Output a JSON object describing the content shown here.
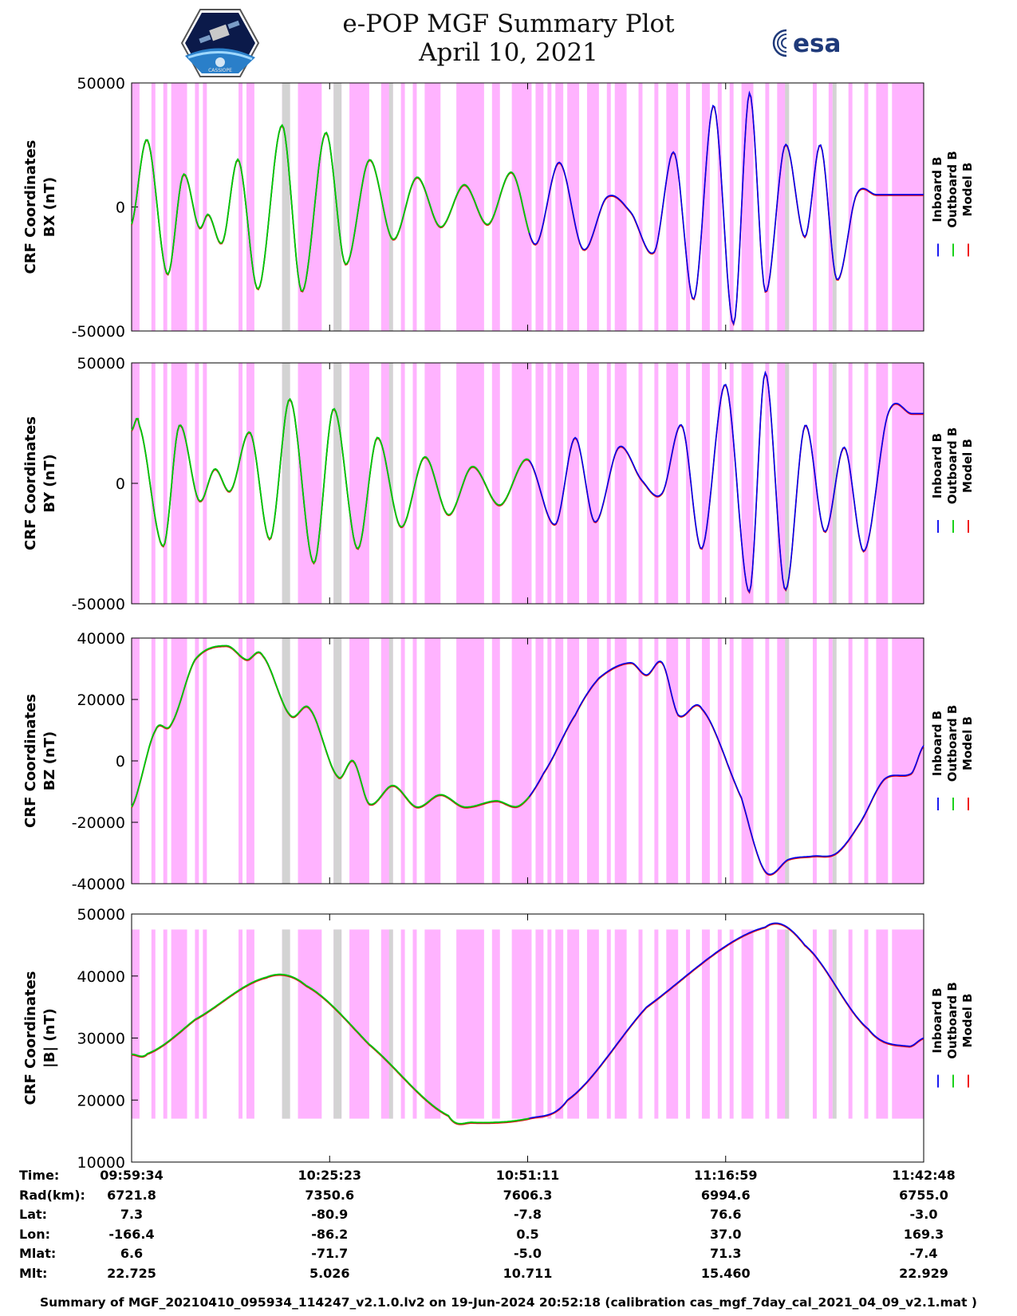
{
  "header": {
    "title_line1": "e-POP MGF Summary Plot",
    "title_line2": "April 10, 2021",
    "logo_left_text": "CASSIOPE",
    "logo_right_text": "esa"
  },
  "legend": {
    "inboard": "Inboard B",
    "outboard": "Outboard B",
    "model": "Model B"
  },
  "colors": {
    "inboard": "#0000ee",
    "outboard": "#00cc00",
    "model": "#ee0000",
    "shade": "#ffb3ff",
    "shade_gray": "#d3d3d3"
  },
  "chart_data": [
    {
      "type": "line",
      "id": "bx",
      "ylabel_line1": "CRF Coordinates",
      "ylabel_line2": "BX (nT)",
      "ylim": [
        -50000,
        50000
      ],
      "yticks": [
        "50000",
        "0",
        "-50000"
      ],
      "ytick_values": [
        50000,
        0,
        -50000
      ],
      "x": [
        0,
        0.02,
        0.045,
        0.065,
        0.085,
        0.097,
        0.115,
        0.135,
        0.16,
        0.19,
        0.215,
        0.245,
        0.27,
        0.3,
        0.33,
        0.36,
        0.39,
        0.42,
        0.45,
        0.48,
        0.51,
        0.54,
        0.57,
        0.6,
        0.63,
        0.66,
        0.685,
        0.71,
        0.735,
        0.76,
        0.78,
        0.8,
        0.825,
        0.85,
        0.87,
        0.89,
        0.915,
        0.94,
        0.96,
        0.985,
        1.0
      ],
      "values": [
        -7000,
        27000,
        -27000,
        13000,
        -8000,
        -3000,
        -14000,
        19000,
        -33000,
        33000,
        -34000,
        30000,
        -23000,
        19000,
        -13000,
        12000,
        -8000,
        9000,
        -7000,
        14000,
        -15000,
        18000,
        -17000,
        4000,
        -2000,
        -18000,
        22000,
        -37000,
        41000,
        -47000,
        46000,
        -34000,
        25000,
        -12000,
        25000,
        -29000,
        5000,
        5000,
        5000,
        5000,
        5000
      ],
      "handoff_x": 0.5
    },
    {
      "type": "line",
      "id": "by",
      "ylabel_line1": "CRF Coordinates",
      "ylabel_line2": "BY (nT)",
      "ylim": [
        -50000,
        50000
      ],
      "yticks": [
        "50000",
        "0",
        "-50000"
      ],
      "ytick_values": [
        50000,
        0,
        -50000
      ],
      "x": [
        0,
        0.01,
        0.04,
        0.06,
        0.085,
        0.105,
        0.125,
        0.15,
        0.175,
        0.2,
        0.23,
        0.255,
        0.285,
        0.31,
        0.34,
        0.37,
        0.4,
        0.43,
        0.465,
        0.5,
        0.535,
        0.56,
        0.585,
        0.615,
        0.645,
        0.67,
        0.695,
        0.72,
        0.75,
        0.78,
        0.8,
        0.825,
        0.85,
        0.875,
        0.9,
        0.925,
        0.955,
        0.985,
        1.0
      ],
      "values": [
        22000,
        24000,
        -26000,
        24000,
        -7000,
        6000,
        -3000,
        21000,
        -23000,
        35000,
        -33000,
        31000,
        -27000,
        19000,
        -18000,
        11000,
        -13000,
        7000,
        -9000,
        10000,
        -17000,
        19000,
        -16000,
        15000,
        1000,
        -4000,
        24000,
        -27000,
        41000,
        -45000,
        46000,
        -44000,
        24000,
        -20000,
        15000,
        -28000,
        29000,
        29000,
        29000
      ],
      "handoff_x": 0.5
    },
    {
      "type": "line",
      "id": "bz",
      "ylabel_line1": "CRF Coordinates",
      "ylabel_line2": "BZ (nT)",
      "ylim": [
        -40000,
        40000
      ],
      "yticks": [
        "40000",
        "20000",
        "0",
        "-20000",
        "-40000"
      ],
      "ytick_values": [
        40000,
        20000,
        0,
        -20000,
        -40000
      ],
      "x": [
        0,
        0.03,
        0.05,
        0.08,
        0.12,
        0.145,
        0.165,
        0.2,
        0.225,
        0.26,
        0.28,
        0.3,
        0.33,
        0.36,
        0.39,
        0.42,
        0.46,
        0.49,
        0.52,
        0.56,
        0.59,
        0.63,
        0.65,
        0.67,
        0.69,
        0.72,
        0.77,
        0.8,
        0.83,
        0.86,
        0.89,
        0.92,
        0.95,
        0.985,
        1.0
      ],
      "values": [
        -15000,
        10000,
        12000,
        33000,
        37500,
        33000,
        34500,
        15000,
        17000,
        -5000,
        0,
        -14000,
        -8000,
        -15000,
        -11000,
        -15000,
        -13000,
        -14500,
        -4000,
        15000,
        27000,
        32000,
        28000,
        32000,
        15000,
        17000,
        -12000,
        -36000,
        -32000,
        -31000,
        -30000,
        -20000,
        -6000,
        -4000,
        5000
      ],
      "handoff_x": 0.5
    },
    {
      "type": "line",
      "id": "bmag",
      "ylabel_line1": "CRF Coordinates",
      "ylabel_line2": "|B| (nT)",
      "ylim": [
        10000,
        50000
      ],
      "yticks": [
        "50000",
        "40000",
        "30000",
        "20000",
        "10000"
      ],
      "ytick_values": [
        50000,
        40000,
        30000,
        20000,
        10000
      ],
      "x": [
        0,
        0.02,
        0.08,
        0.17,
        0.22,
        0.3,
        0.4,
        0.43,
        0.5,
        0.55,
        0.65,
        0.8,
        0.85,
        0.93,
        0.98,
        1.0
      ],
      "values": [
        27400,
        27500,
        33000,
        39800,
        38500,
        29000,
        17500,
        16400,
        17000,
        20000,
        35000,
        47900,
        45000,
        31500,
        28700,
        30000
      ],
      "handoff_x": 0.5
    }
  ],
  "shading": {
    "pink_bands": [
      [
        0.0,
        0.01
      ],
      [
        0.025,
        0.03
      ],
      [
        0.04,
        0.045
      ],
      [
        0.05,
        0.07
      ],
      [
        0.08,
        0.085
      ],
      [
        0.09,
        0.095
      ],
      [
        0.135,
        0.14
      ],
      [
        0.145,
        0.155
      ],
      [
        0.19,
        0.2
      ],
      [
        0.21,
        0.24
      ],
      [
        0.255,
        0.265
      ],
      [
        0.275,
        0.3
      ],
      [
        0.315,
        0.33
      ],
      [
        0.34,
        0.345
      ],
      [
        0.355,
        0.36
      ],
      [
        0.37,
        0.39
      ],
      [
        0.41,
        0.445
      ],
      [
        0.455,
        0.465
      ],
      [
        0.48,
        0.505
      ],
      [
        0.51,
        0.52
      ],
      [
        0.525,
        0.53
      ],
      [
        0.535,
        0.545
      ],
      [
        0.55,
        0.565
      ],
      [
        0.575,
        0.59
      ],
      [
        0.6,
        0.605
      ],
      [
        0.61,
        0.625
      ],
      [
        0.64,
        0.645
      ],
      [
        0.66,
        0.665
      ],
      [
        0.675,
        0.69
      ],
      [
        0.7,
        0.705
      ],
      [
        0.72,
        0.73
      ],
      [
        0.74,
        0.745
      ],
      [
        0.755,
        0.76
      ],
      [
        0.77,
        0.785
      ],
      [
        0.8,
        0.805
      ],
      [
        0.815,
        0.83
      ],
      [
        0.86,
        0.865
      ],
      [
        0.88,
        0.885
      ],
      [
        0.905,
        0.91
      ],
      [
        0.925,
        0.93
      ],
      [
        0.94,
        0.955
      ],
      [
        0.96,
        1.0
      ]
    ],
    "gray_bands": [
      [
        0.19,
        0.2
      ],
      [
        0.255,
        0.265
      ],
      [
        0.325,
        0.33
      ],
      [
        0.825,
        0.83
      ],
      [
        0.885,
        0.89
      ]
    ]
  },
  "xticks": [
    0,
    0.25,
    0.5,
    0.75,
    1.0
  ],
  "info_table": {
    "row_labels": [
      "Time:",
      "Rad(km):",
      "Lat:",
      "Lon:",
      "Mlat:",
      "Mlt:"
    ],
    "columns": [
      [
        "09:59:34",
        "6721.8",
        "7.3",
        "-166.4",
        "6.6",
        "22.725"
      ],
      [
        "10:25:23",
        "7350.6",
        "-80.9",
        "-86.2",
        "-71.7",
        "5.026"
      ],
      [
        "10:51:11",
        "7606.3",
        "-7.8",
        "0.5",
        "-5.0",
        "10.711"
      ],
      [
        "11:16:59",
        "6994.6",
        "76.6",
        "37.0",
        "71.3",
        "15.460"
      ],
      [
        "11:42:48",
        "6755.0",
        "-3.0",
        "169.3",
        "-7.4",
        "22.929"
      ]
    ]
  },
  "footer": "Summary of MGF_20210410_095934_114247_v2.1.0.lv2 on 19-Jun-2024 20:52:18 (calibration cas_mgf_7day_cal_2021_04_09_v2.1.mat )"
}
